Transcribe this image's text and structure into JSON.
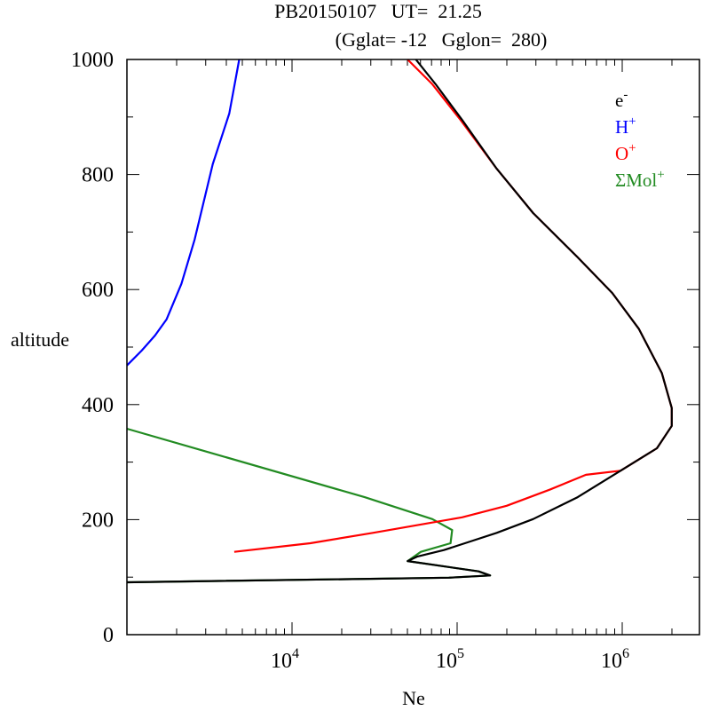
{
  "chart_data": {
    "type": "line",
    "title_line1": "PB20150107   UT=  21.25",
    "title_line2": "(Gglat= -12   Gglon=  280)",
    "xlabel": "Ne",
    "ylabel": "altitude",
    "xscale": "log",
    "xlim": [
      1000,
      3000000
    ],
    "ylim": [
      0,
      1000
    ],
    "yticks": [
      "0",
      "200",
      "400",
      "600",
      "800",
      "1000"
    ],
    "xticks": [
      {
        "base": "10",
        "exp": "4"
      },
      {
        "base": "10",
        "exp": "5"
      },
      {
        "base": "10",
        "exp": "6"
      }
    ],
    "legend_position": "top-right",
    "series": [
      {
        "name": "e-",
        "label": "e",
        "sup": "-",
        "color": "#000000",
        "logNe": [
          3.0,
          4.95,
          5.2,
          5.13,
          4.7,
          4.76,
          4.92,
          5.08,
          5.24,
          5.46,
          5.73,
          5.99,
          6.21,
          6.3,
          6.3,
          6.24,
          6.1,
          5.94,
          5.73,
          5.46,
          5.24,
          5.03,
          4.87,
          4.75
        ],
        "alt": [
          91,
          99,
          103,
          110,
          128,
          136,
          147,
          162,
          177,
          201,
          239,
          285,
          324,
          363,
          394,
          455,
          532,
          594,
          656,
          733,
          810,
          895,
          957,
          1000
        ]
      },
      {
        "name": "H+",
        "label": "H",
        "sup": "+",
        "color": "#0000ff",
        "logNe": [
          3.0,
          3.09,
          3.17,
          3.24,
          3.33,
          3.41,
          3.52,
          3.62,
          3.68
        ],
        "alt": [
          468,
          494,
          520,
          548,
          610,
          687,
          818,
          906,
          1000
        ]
      },
      {
        "name": "O+",
        "label": "O",
        "sup": "+",
        "color": "#ff0000",
        "logNe": [
          3.65,
          4.11,
          4.49,
          4.81,
          5.03,
          5.3,
          5.56,
          5.78,
          5.99,
          6.21,
          6.3,
          6.3,
          6.24,
          6.1,
          5.94,
          5.73,
          5.46,
          5.24,
          5.02,
          4.85,
          4.7
        ],
        "alt": [
          144,
          159,
          177,
          193,
          204,
          224,
          252,
          278,
          285,
          324,
          363,
          394,
          455,
          532,
          594,
          656,
          733,
          810,
          895,
          957,
          1000
        ]
      },
      {
        "name": "ΣMol+",
        "label": "ΣMol",
        "sup": "+",
        "color": "#228b22",
        "logNe": [
          3.0,
          4.44,
          4.85,
          4.97,
          4.96,
          4.78,
          4.7,
          5.13,
          5.2,
          4.95,
          3.0
        ],
        "alt": [
          358,
          239,
          201,
          182,
          159,
          144,
          128,
          110,
          103,
          99,
          91
        ]
      }
    ]
  }
}
